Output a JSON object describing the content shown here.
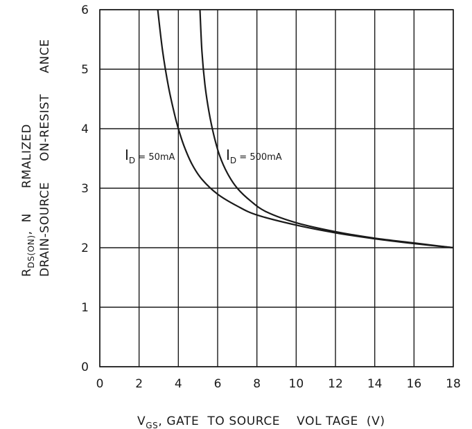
{
  "chart_data": {
    "type": "line",
    "xlabel": {
      "main": "V",
      "sub": "GS",
      "rest": ", GATE  TO SOURCE    VOL TAGE  (V)"
    },
    "ylabel": {
      "line1_main": "R",
      "line1_sub": "DS(ON)",
      "line1_rest": ",  N      RMALIZED",
      "line2": "DRAIN-SOURCE     ON-RESIST     ANCE"
    },
    "xlim": [
      0,
      18
    ],
    "ylim": [
      0,
      6
    ],
    "xticks": [
      "0",
      "2",
      "4",
      "6",
      "8",
      "10",
      "12",
      "14",
      "16",
      "18"
    ],
    "yticks": [
      "0",
      "1",
      "2",
      "3",
      "4",
      "5",
      "6"
    ],
    "grid": true,
    "series": [
      {
        "label_main": "I",
        "label_sub": "D",
        "label_rest": " = 50mA",
        "x": [
          2.95,
          3.2,
          3.5,
          3.8,
          4.0,
          4.3,
          4.7,
          5.2,
          6.0,
          7.0,
          8.0,
          10.0,
          12.0,
          14.0,
          16.0,
          18.0
        ],
        "y": [
          6.0,
          5.3,
          4.7,
          4.25,
          4.0,
          3.7,
          3.4,
          3.15,
          2.9,
          2.7,
          2.55,
          2.38,
          2.25,
          2.15,
          2.07,
          2.0
        ]
      },
      {
        "label_main": "I",
        "label_sub": "D",
        "label_rest": " = 500mA",
        "x": [
          5.1,
          5.2,
          5.35,
          5.55,
          5.8,
          6.1,
          6.5,
          7.0,
          7.7,
          8.5,
          10.0,
          12.0,
          14.0,
          16.0,
          18.0
        ],
        "y": [
          6.0,
          5.3,
          4.75,
          4.3,
          3.9,
          3.55,
          3.25,
          3.0,
          2.78,
          2.6,
          2.42,
          2.27,
          2.16,
          2.08,
          2.0
        ]
      }
    ]
  }
}
